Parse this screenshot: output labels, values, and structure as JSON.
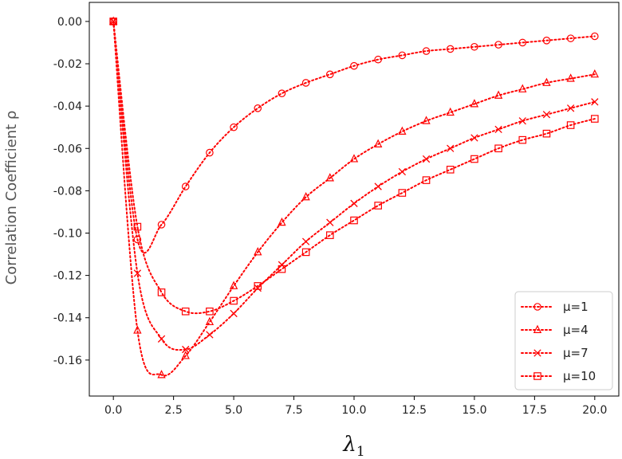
{
  "chart_data": {
    "type": "line",
    "title": "",
    "xlabel": "λ1",
    "ylabel": "Correlation Coefficient ρ",
    "xlim": [
      -1,
      21
    ],
    "ylim": [
      -0.177,
      0.009
    ],
    "x_ticks": [
      "0.0",
      "2.5",
      "5.0",
      "7.5",
      "10.0",
      "12.5",
      "15.0",
      "17.5",
      "20.0"
    ],
    "y_ticks": [
      "0.00",
      "-0.02",
      "-0.04",
      "-0.06",
      "-0.08",
      "-0.10",
      "-0.12",
      "-0.14",
      "-0.16"
    ],
    "grid": false,
    "legend_position": "lower-right",
    "line_style": "dotted",
    "color": "#ff0000",
    "x": [
      0,
      1,
      2,
      3,
      4,
      5,
      6,
      7,
      8,
      9,
      10,
      11,
      12,
      13,
      14,
      15,
      16,
      17,
      18,
      19,
      20
    ],
    "series": [
      {
        "name": "μ=1",
        "marker": "circle",
        "values": [
          0.0,
          -0.103,
          -0.096,
          -0.078,
          -0.062,
          -0.05,
          -0.041,
          -0.034,
          -0.029,
          -0.025,
          -0.021,
          -0.018,
          -0.016,
          -0.014,
          -0.013,
          -0.012,
          -0.011,
          -0.01,
          -0.009,
          -0.008,
          -0.007
        ]
      },
      {
        "name": "μ=4",
        "marker": "triangle",
        "values": [
          0.0,
          -0.146,
          -0.167,
          -0.158,
          -0.142,
          -0.125,
          -0.109,
          -0.095,
          -0.083,
          -0.074,
          -0.065,
          -0.058,
          -0.052,
          -0.047,
          -0.043,
          -0.039,
          -0.035,
          -0.032,
          -0.029,
          -0.027,
          -0.025
        ]
      },
      {
        "name": "μ=7",
        "marker": "x",
        "values": [
          0.0,
          -0.119,
          -0.15,
          -0.155,
          -0.148,
          -0.138,
          -0.126,
          -0.115,
          -0.104,
          -0.095,
          -0.086,
          -0.078,
          -0.071,
          -0.065,
          -0.06,
          -0.055,
          -0.051,
          -0.047,
          -0.044,
          -0.041,
          -0.038
        ]
      },
      {
        "name": "μ=10",
        "marker": "square",
        "values": [
          0.0,
          -0.097,
          -0.128,
          -0.137,
          -0.137,
          -0.132,
          -0.125,
          -0.117,
          -0.109,
          -0.101,
          -0.094,
          -0.087,
          -0.081,
          -0.075,
          -0.07,
          -0.065,
          -0.06,
          -0.056,
          -0.053,
          -0.049,
          -0.046
        ]
      }
    ]
  }
}
